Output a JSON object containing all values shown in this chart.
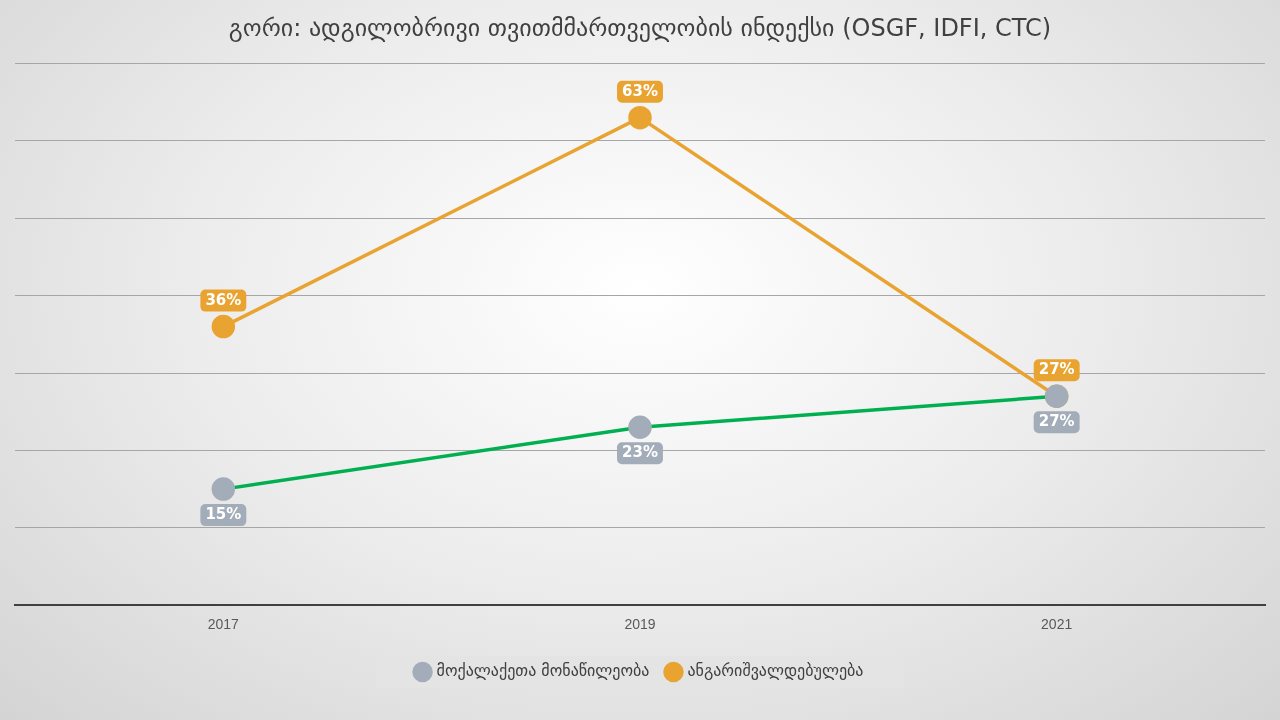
{
  "chart_data": {
    "type": "line",
    "title": "გორი: ადგილობრივი თვითმმართველობის ინდექსი (OSGF, IDFI, CTC)",
    "categories": [
      "2017",
      "2019",
      "2021"
    ],
    "series": [
      {
        "name": "მოქალაქეთა მონაწილეობა",
        "color": "#00b050",
        "colors": [
          "#a3acb9",
          "#a3acb9",
          "#a3acb9"
        ],
        "values": [
          15,
          23,
          27
        ],
        "value_labels": [
          "15%",
          "23%",
          "27%"
        ]
      },
      {
        "name": "ანგარიშვალდებულება",
        "color": "#e8a330",
        "colors": [
          "#e8a330",
          "#e8a330",
          "#e8a330"
        ],
        "values": [
          36,
          63,
          27
        ],
        "value_labels": [
          "36%",
          "63%",
          "27%"
        ]
      }
    ],
    "ylim": [
      0,
      70
    ],
    "yticks": [
      0,
      10,
      20,
      30,
      40,
      50,
      60,
      70
    ],
    "grid": "y",
    "legend": "bottom",
    "marker": "circle",
    "line_style": "solid",
    "tick_labels": "x"
  }
}
